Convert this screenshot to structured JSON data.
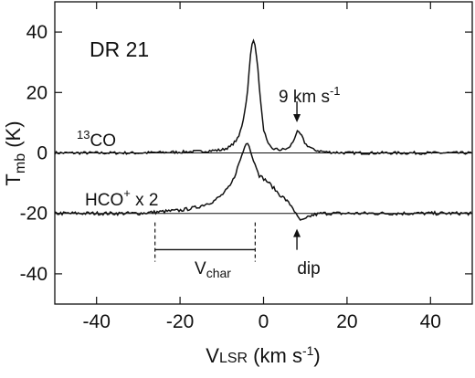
{
  "chart_data": {
    "type": "line",
    "title": "DR 21",
    "xlabel": {
      "main": "V",
      "sub": "LSR",
      "units_pre": " (km s",
      "sup": "-1",
      "units_post": ")"
    },
    "ylabel": {
      "main": "T",
      "sub": "mb",
      "units": " (K)"
    },
    "xlim": [
      -50,
      50
    ],
    "ylim": [
      -50,
      50
    ],
    "x_ticks": [
      -40,
      -20,
      0,
      20,
      40
    ],
    "y_ticks": [
      -40,
      -20,
      0,
      20,
      40
    ],
    "x_tick_labels": [
      "-40",
      "-20",
      "0",
      "20",
      "40"
    ],
    "y_tick_labels": [
      "-40",
      "-20",
      "0",
      "20",
      "40"
    ],
    "series": [
      {
        "name": "13CO",
        "x": [
          -50,
          -40,
          -30,
          -20,
          -15,
          -10,
          -8,
          -6,
          -5,
          -4,
          -3.5,
          -3,
          -2.5,
          -2,
          -1.5,
          -1,
          -0.5,
          0,
          1,
          2,
          4,
          6,
          7,
          8,
          9,
          10,
          12,
          15,
          20,
          30,
          40,
          50
        ],
        "y": [
          0,
          0,
          0,
          0.3,
          0.5,
          1,
          2,
          5,
          10,
          18,
          26,
          34,
          37.5,
          36,
          30,
          22,
          14,
          8,
          3,
          1.5,
          1,
          1.5,
          3.5,
          7,
          6,
          3,
          1,
          0.3,
          0,
          0,
          0,
          0
        ]
      },
      {
        "name": "HCO+ x 2",
        "x": [
          -50,
          -40,
          -30,
          -25,
          -20,
          -18,
          -16,
          -14,
          -12,
          -10,
          -8,
          -7,
          -6,
          -5,
          -4.5,
          -4,
          -3.5,
          -3,
          -2.5,
          -2,
          -1.5,
          -1,
          0,
          1,
          2,
          3,
          4,
          5,
          6,
          7,
          8,
          9,
          10,
          11,
          12,
          14,
          16,
          20,
          30,
          40,
          50
        ],
        "y": [
          -20,
          -20,
          -20,
          -19.5,
          -19,
          -18.5,
          -18,
          -17,
          -16,
          -14,
          -11,
          -8,
          -4,
          0,
          2,
          4,
          3,
          0,
          -2,
          -4,
          -5,
          -7.5,
          -8.5,
          -9.5,
          -11,
          -12.5,
          -14,
          -15,
          -16.5,
          -18,
          -21,
          -22.5,
          -22,
          -21,
          -20.5,
          -20,
          -20,
          -20,
          -20,
          -20,
          -20
        ]
      }
    ],
    "baselines": [
      0,
      -20
    ],
    "annotations": {
      "title": "DR 21",
      "co_label_sup": "13",
      "co_label_main": "CO",
      "hco_label_main": "HCO",
      "hco_label_sup": "+",
      "hco_label_suffix": " x 2",
      "nine_kms_main": "9 km s",
      "nine_kms_sup": "-1",
      "vchar_main": "V",
      "vchar_sub": "char",
      "dip": "dip"
    },
    "vchar_range": [
      -26,
      -2
    ],
    "arrow_points": {
      "nine_kms": [
        8,
        8
      ],
      "dip": [
        8,
        -23
      ]
    }
  }
}
